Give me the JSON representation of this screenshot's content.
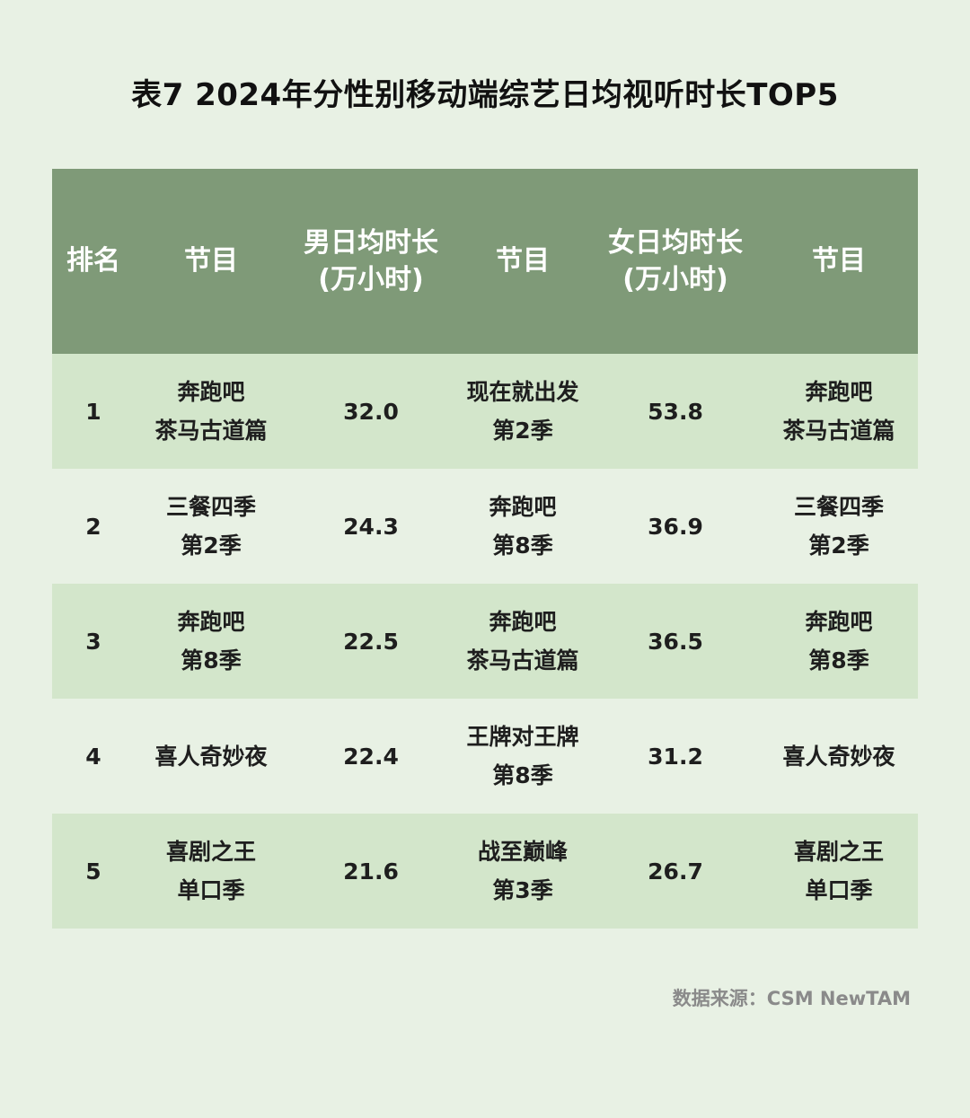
{
  "title": "表7 2024年分性别移动端综艺日均视听时长TOP5",
  "headers": {
    "rank": "排名",
    "program_male": "节目",
    "male_line1": "男日均时长",
    "male_line2": "(万小时)",
    "program_female": "节目",
    "female_line1": "女日均时长",
    "female_line2": "(万小时)",
    "program_total": "节目"
  },
  "rows": [
    {
      "rank": "1",
      "male_prog_l1": "奔跑吧",
      "male_prog_l2": "茶马古道篇",
      "male_hours": "32.0",
      "female_prog_l1": "现在就出发",
      "female_prog_l2": "第2季",
      "female_hours": "53.8",
      "other_prog_l1": "奔跑吧",
      "other_prog_l2": "茶马古道篇"
    },
    {
      "rank": "2",
      "male_prog_l1": "三餐四季",
      "male_prog_l2": "第2季",
      "male_hours": "24.3",
      "female_prog_l1": "奔跑吧",
      "female_prog_l2": "第8季",
      "female_hours": "36.9",
      "other_prog_l1": "三餐四季",
      "other_prog_l2": "第2季"
    },
    {
      "rank": "3",
      "male_prog_l1": "奔跑吧",
      "male_prog_l2": "第8季",
      "male_hours": "22.5",
      "female_prog_l1": "奔跑吧",
      "female_prog_l2": "茶马古道篇",
      "female_hours": "36.5",
      "other_prog_l1": "奔跑吧",
      "other_prog_l2": "第8季"
    },
    {
      "rank": "4",
      "male_prog_l1": "喜人奇妙夜",
      "male_prog_l2": "",
      "male_hours": "22.4",
      "female_prog_l1": "王牌对王牌",
      "female_prog_l2": "第8季",
      "female_hours": "31.2",
      "other_prog_l1": "喜人奇妙夜",
      "other_prog_l2": ""
    },
    {
      "rank": "5",
      "male_prog_l1": "喜剧之王",
      "male_prog_l2": "单口季",
      "male_hours": "21.6",
      "female_prog_l1": "战至巅峰",
      "female_prog_l2": "第3季",
      "female_hours": "26.7",
      "other_prog_l1": "喜剧之王",
      "other_prog_l2": "单口季"
    }
  ],
  "source": "数据来源：CSM NewTAM",
  "colors": {
    "background": "#e8f1e4",
    "header": "#7f9a78",
    "shaded_row": "#d3e6cb"
  }
}
